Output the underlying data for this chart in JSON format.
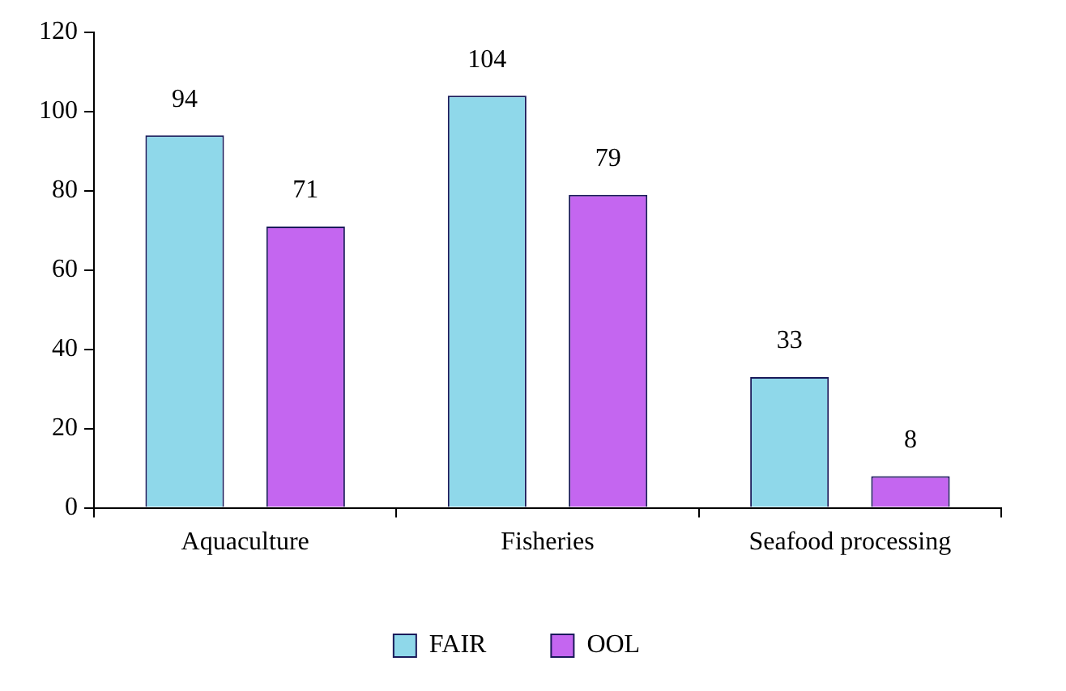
{
  "chart_data": {
    "type": "bar",
    "categories": [
      "Aquaculture",
      "Fisheries",
      "Seafood processing"
    ],
    "series": [
      {
        "name": "FAIR",
        "color": "#8fd8ea",
        "values": [
          94,
          104,
          33
        ]
      },
      {
        "name": "OOL",
        "color": "#c466f0",
        "values": [
          71,
          79,
          8
        ]
      }
    ],
    "ylim": [
      0,
      120
    ],
    "yticks": [
      0,
      20,
      40,
      60,
      80,
      100,
      120
    ],
    "grid": false,
    "legend": "bottom",
    "data_labels": true
  }
}
